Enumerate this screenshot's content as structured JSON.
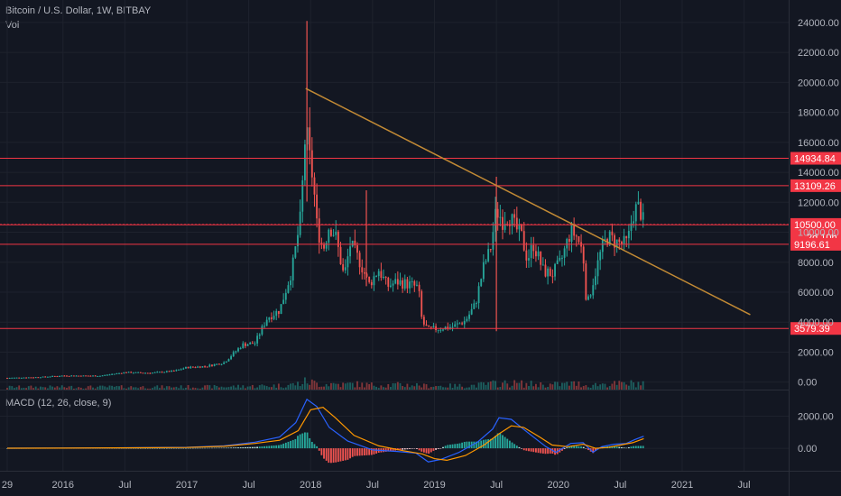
{
  "legend": {
    "title": "Bitcoin / U.S. Dollar, 1W, BITBAY",
    "vol": "Vol",
    "macd": "MACD (12, 26, close, 9)"
  },
  "colors": {
    "background": "#131722",
    "up": "#26a69a",
    "down": "#ef5350",
    "level": "#f23645",
    "trend": "#c28a35",
    "macd": "#2962ff",
    "signal": "#ff9800"
  },
  "chart_data": {
    "type": "candlestick",
    "y_axis": {
      "range": [
        -500,
        25500
      ],
      "ticks": [
        "0.00",
        "2000.00",
        "4000.00",
        "6000.00",
        "8000.00",
        "10000.00",
        "12000.00",
        "14000.00",
        "16000.00",
        "18000.00",
        "20000.00",
        "22000.00",
        "24000.00"
      ]
    },
    "macd_axis": {
      "range": [
        -1400,
        3600
      ],
      "ticks": [
        "0.00",
        "2000.00"
      ]
    },
    "x_axis": {
      "ticks": [
        {
          "label": "29",
          "t": 2015.55
        },
        {
          "label": "2016",
          "t": 2016.0
        },
        {
          "label": "Jul",
          "t": 2016.5
        },
        {
          "label": "2017",
          "t": 2017.0
        },
        {
          "label": "Jul",
          "t": 2017.5
        },
        {
          "label": "2018",
          "t": 2018.0
        },
        {
          "label": "Jul",
          "t": 2018.5
        },
        {
          "label": "2019",
          "t": 2019.0
        },
        {
          "label": "Jul",
          "t": 2019.5
        },
        {
          "label": "2020",
          "t": 2020.0
        },
        {
          "label": "Jul",
          "t": 2020.5
        },
        {
          "label": "2021",
          "t": 2021.0
        },
        {
          "label": "Jul",
          "t": 2021.5
        }
      ]
    },
    "horizontal_levels": [
      {
        "label": "14934.84",
        "value": 14934.84
      },
      {
        "label": "13109.26",
        "value": 13109.26
      },
      {
        "label": "10520.56",
        "value": 10520.56
      },
      {
        "label": "10500.00",
        "value": 10500.0,
        "sub": "2d 10h"
      },
      {
        "label": "9196.61",
        "value": 9196.61
      },
      {
        "label": "3579.39",
        "value": 3579.39
      }
    ],
    "trendline": {
      "start": {
        "t": 2017.96,
        "value": 19600
      },
      "end": {
        "t": 2021.55,
        "value": 4500
      }
    },
    "price_path": [
      [
        2015.55,
        280
      ],
      [
        2015.8,
        330
      ],
      [
        2016.0,
        430
      ],
      [
        2016.3,
        420
      ],
      [
        2016.5,
        650
      ],
      [
        2016.7,
        610
      ],
      [
        2016.9,
        740
      ],
      [
        2017.0,
        980
      ],
      [
        2017.15,
        1050
      ],
      [
        2017.3,
        1300
      ],
      [
        2017.45,
        2500
      ],
      [
        2017.55,
        2600
      ],
      [
        2017.65,
        4300
      ],
      [
        2017.75,
        4800
      ],
      [
        2017.85,
        7500
      ],
      [
        2017.92,
        11000
      ],
      [
        2017.96,
        17000
      ],
      [
        2017.99,
        15000
      ],
      [
        2018.02,
        13500
      ],
      [
        2018.05,
        10500
      ],
      [
        2018.1,
        8800
      ],
      [
        2018.15,
        10500
      ],
      [
        2018.2,
        9800
      ],
      [
        2018.27,
        7000
      ],
      [
        2018.32,
        9200
      ],
      [
        2018.4,
        8000
      ],
      [
        2018.47,
        6500
      ],
      [
        2018.55,
        7500
      ],
      [
        2018.62,
        6400
      ],
      [
        2018.7,
        6700
      ],
      [
        2018.8,
        6500
      ],
      [
        2018.87,
        6300
      ],
      [
        2018.9,
        4000
      ],
      [
        2018.95,
        3500
      ],
      [
        2019.05,
        3600
      ],
      [
        2019.15,
        3700
      ],
      [
        2019.25,
        4100
      ],
      [
        2019.33,
        5200
      ],
      [
        2019.4,
        7800
      ],
      [
        2019.45,
        8800
      ],
      [
        2019.5,
        11500
      ],
      [
        2019.55,
        10800
      ],
      [
        2019.6,
        11200
      ],
      [
        2019.65,
        10300
      ],
      [
        2019.7,
        9800
      ],
      [
        2019.75,
        8200
      ],
      [
        2019.8,
        9200
      ],
      [
        2019.88,
        7400
      ],
      [
        2019.95,
        7200
      ],
      [
        2020.02,
        8000
      ],
      [
        2020.1,
        10100
      ],
      [
        2020.15,
        9700
      ],
      [
        2020.2,
        8600
      ],
      [
        2020.23,
        5000
      ],
      [
        2020.28,
        6700
      ],
      [
        2020.35,
        8900
      ],
      [
        2020.4,
        9700
      ],
      [
        2020.45,
        9400
      ],
      [
        2020.52,
        9200
      ],
      [
        2020.56,
        9300
      ],
      [
        2020.6,
        11200
      ],
      [
        2020.64,
        11700
      ],
      [
        2020.67,
        11300
      ],
      [
        2020.69,
        10500
      ]
    ],
    "annotations": [
      {
        "t": 2017.97,
        "high": 24100
      },
      {
        "t": 2019.5,
        "high": 13700,
        "low": 3400
      },
      {
        "t": 2018.45,
        "high": 12800
      }
    ],
    "macd_path": [
      [
        2015.55,
        5
      ],
      [
        2016.0,
        15
      ],
      [
        2016.5,
        30
      ],
      [
        2017.0,
        60
      ],
      [
        2017.3,
        150
      ],
      [
        2017.55,
        380
      ],
      [
        2017.75,
        700
      ],
      [
        2017.88,
        1600
      ],
      [
        2017.97,
        3050
      ],
      [
        2018.05,
        2600
      ],
      [
        2018.15,
        1300
      ],
      [
        2018.3,
        450
      ],
      [
        2018.5,
        -100
      ],
      [
        2018.7,
        -200
      ],
      [
        2018.85,
        -300
      ],
      [
        2018.95,
        -850
      ],
      [
        2019.05,
        -700
      ],
      [
        2019.2,
        -250
      ],
      [
        2019.35,
        400
      ],
      [
        2019.47,
        1200
      ],
      [
        2019.52,
        1900
      ],
      [
        2019.62,
        1800
      ],
      [
        2019.75,
        1000
      ],
      [
        2019.9,
        100
      ],
      [
        2019.98,
        -250
      ],
      [
        2020.1,
        300
      ],
      [
        2020.2,
        350
      ],
      [
        2020.28,
        -250
      ],
      [
        2020.35,
        100
      ],
      [
        2020.45,
        250
      ],
      [
        2020.55,
        300
      ],
      [
        2020.62,
        550
      ],
      [
        2020.69,
        750
      ]
    ],
    "signal_path": [
      [
        2015.55,
        5
      ],
      [
        2016.0,
        12
      ],
      [
        2016.5,
        25
      ],
      [
        2017.0,
        50
      ],
      [
        2017.3,
        120
      ],
      [
        2017.55,
        300
      ],
      [
        2017.75,
        500
      ],
      [
        2017.9,
        1100
      ],
      [
        2018.0,
        2400
      ],
      [
        2018.1,
        2550
      ],
      [
        2018.2,
        1900
      ],
      [
        2018.35,
        800
      ],
      [
        2018.55,
        150
      ],
      [
        2018.75,
        -150
      ],
      [
        2018.9,
        -350
      ],
      [
        2019.0,
        -650
      ],
      [
        2019.1,
        -750
      ],
      [
        2019.25,
        -450
      ],
      [
        2019.4,
        200
      ],
      [
        2019.52,
        900
      ],
      [
        2019.62,
        1400
      ],
      [
        2019.72,
        1300
      ],
      [
        2019.85,
        700
      ],
      [
        2019.95,
        200
      ],
      [
        2020.08,
        100
      ],
      [
        2020.2,
        250
      ],
      [
        2020.3,
        0
      ],
      [
        2020.4,
        50
      ],
      [
        2020.5,
        200
      ],
      [
        2020.6,
        350
      ],
      [
        2020.69,
        600
      ]
    ]
  }
}
